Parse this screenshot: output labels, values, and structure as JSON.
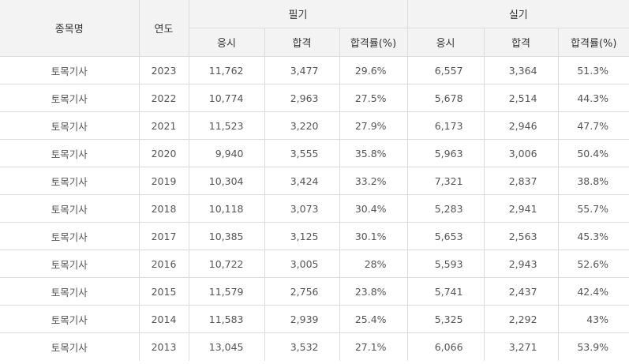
{
  "header": {
    "subject": "종목명",
    "year": "연도",
    "written": "필기",
    "practical": "실기",
    "sub": [
      "응시",
      "합격",
      "합격률(%)",
      "응시",
      "합격",
      "합격률(%)"
    ]
  },
  "rows": [
    {
      "subject": "토목기사",
      "year": "2023",
      "w_applied": "11,762",
      "w_passed": "3,477",
      "w_rate": "29.6%",
      "p_applied": "6,557",
      "p_passed": "3,364",
      "p_rate": "51.3%"
    },
    {
      "subject": "토목기사",
      "year": "2022",
      "w_applied": "10,774",
      "w_passed": "2,963",
      "w_rate": "27.5%",
      "p_applied": "5,678",
      "p_passed": "2,514",
      "p_rate": "44.3%"
    },
    {
      "subject": "토목기사",
      "year": "2021",
      "w_applied": "11,523",
      "w_passed": "3,220",
      "w_rate": "27.9%",
      "p_applied": "6,173",
      "p_passed": "2,946",
      "p_rate": "47.7%"
    },
    {
      "subject": "토목기사",
      "year": "2020",
      "w_applied": "9,940",
      "w_passed": "3,555",
      "w_rate": "35.8%",
      "p_applied": "5,963",
      "p_passed": "3,006",
      "p_rate": "50.4%"
    },
    {
      "subject": "토목기사",
      "year": "2019",
      "w_applied": "10,304",
      "w_passed": "3,424",
      "w_rate": "33.2%",
      "p_applied": "7,321",
      "p_passed": "2,837",
      "p_rate": "38.8%"
    },
    {
      "subject": "토목기사",
      "year": "2018",
      "w_applied": "10,118",
      "w_passed": "3,073",
      "w_rate": "30.4%",
      "p_applied": "5,283",
      "p_passed": "2,941",
      "p_rate": "55.7%"
    },
    {
      "subject": "토목기사",
      "year": "2017",
      "w_applied": "10,385",
      "w_passed": "3,125",
      "w_rate": "30.1%",
      "p_applied": "5,653",
      "p_passed": "2,563",
      "p_rate": "45.3%"
    },
    {
      "subject": "토목기사",
      "year": "2016",
      "w_applied": "10,722",
      "w_passed": "3,005",
      "w_rate": "28%",
      "p_applied": "5,593",
      "p_passed": "2,943",
      "p_rate": "52.6%"
    },
    {
      "subject": "토목기사",
      "year": "2015",
      "w_applied": "11,579",
      "w_passed": "2,756",
      "w_rate": "23.8%",
      "p_applied": "5,741",
      "p_passed": "2,437",
      "p_rate": "42.4%"
    },
    {
      "subject": "토목기사",
      "year": "2014",
      "w_applied": "11,583",
      "w_passed": "2,939",
      "w_rate": "25.4%",
      "p_applied": "5,325",
      "p_passed": "2,292",
      "p_rate": "43%"
    },
    {
      "subject": "토목기사",
      "year": "2013",
      "w_applied": "13,045",
      "w_passed": "3,532",
      "w_rate": "27.1%",
      "p_applied": "6,066",
      "p_passed": "3,271",
      "p_rate": "53.9%"
    }
  ]
}
